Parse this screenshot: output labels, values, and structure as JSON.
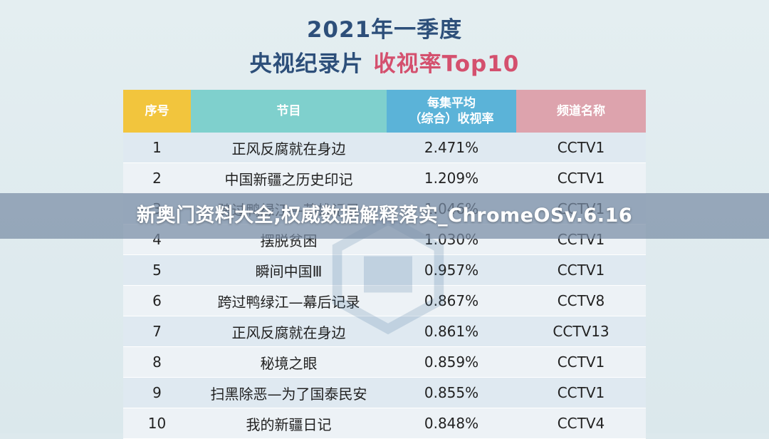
{
  "header": {
    "title_line1": "2021年一季度",
    "title_line2_a": "央视纪录片",
    "title_line2_b": "收视率Top10"
  },
  "table": {
    "columns": [
      "序号",
      "节目",
      "每集平均（综合）收视率",
      "频道名称"
    ],
    "col2_line1": "每集平均",
    "col2_line2": "（综合）收视率",
    "rows": [
      [
        "1",
        "正风反腐就在身边",
        "2.471%",
        "CCTV1"
      ],
      [
        "2",
        "中国新疆之历史印记",
        "1.209%",
        "CCTV1"
      ],
      [
        "3",
        "跨过鸭绿江—英雄记录",
        "1.046%",
        "CCTV1"
      ],
      [
        "4",
        "摆脱贫困",
        "1.030%",
        "CCTV1"
      ],
      [
        "5",
        "瞬间中国Ⅲ",
        "0.957%",
        "CCTV1"
      ],
      [
        "6",
        "跨过鸭绿江—幕后记录",
        "0.867%",
        "CCTV8"
      ],
      [
        "7",
        "正风反腐就在身边",
        "0.861%",
        "CCTV13"
      ],
      [
        "8",
        "秘境之眼",
        "0.859%",
        "CCTV1"
      ],
      [
        "9",
        "扫黑除恶—为了国泰民安",
        "0.855%",
        "CCTV1"
      ],
      [
        "10",
        "我的新疆日记",
        "0.848%",
        "CCTV4"
      ]
    ]
  },
  "banner": {
    "text": "新奥门资料大全,权威数据解释落实_ChromeOSv.6.16"
  },
  "colors": {
    "title_blue": "#2d4f7a",
    "title_pink": "#d4506e",
    "header_yellow": "#f2c53d",
    "header_teal": "#7fd0cd",
    "header_blue": "#5bb3d8",
    "header_pink": "#dda3ad"
  }
}
